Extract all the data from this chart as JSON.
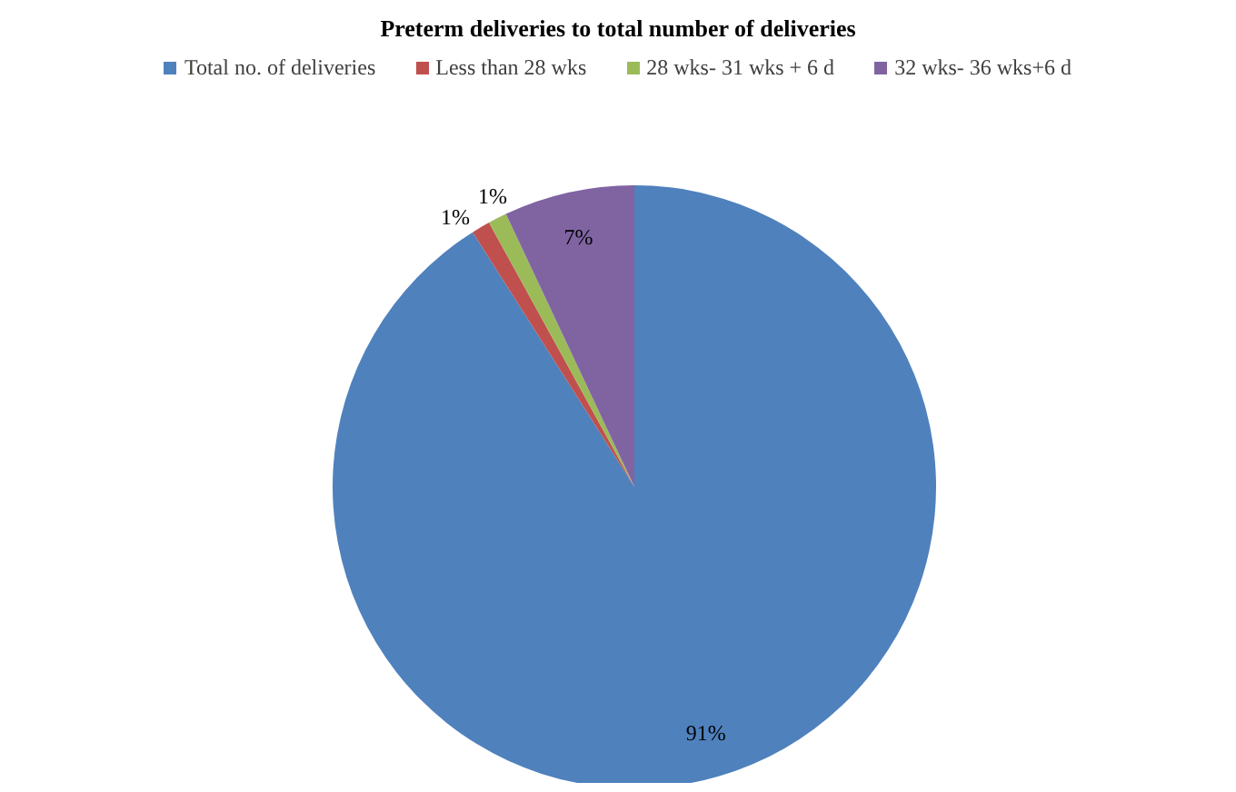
{
  "chart_data": {
    "type": "pie",
    "title": "Preterm deliveries to total number of deliveries",
    "categories": [
      "Total no. of deliveries",
      "Less than 28 wks",
      "28 wks- 31 wks + 6 d",
      "32 wks- 36 wks+6 d"
    ],
    "values": [
      91,
      1,
      1,
      7
    ],
    "colors": [
      "#4f81bd",
      "#c0504d",
      "#9bbb59",
      "#8064a2"
    ],
    "value_labels": [
      "91%",
      "1%",
      "1%",
      "7%"
    ],
    "legend": "top"
  }
}
